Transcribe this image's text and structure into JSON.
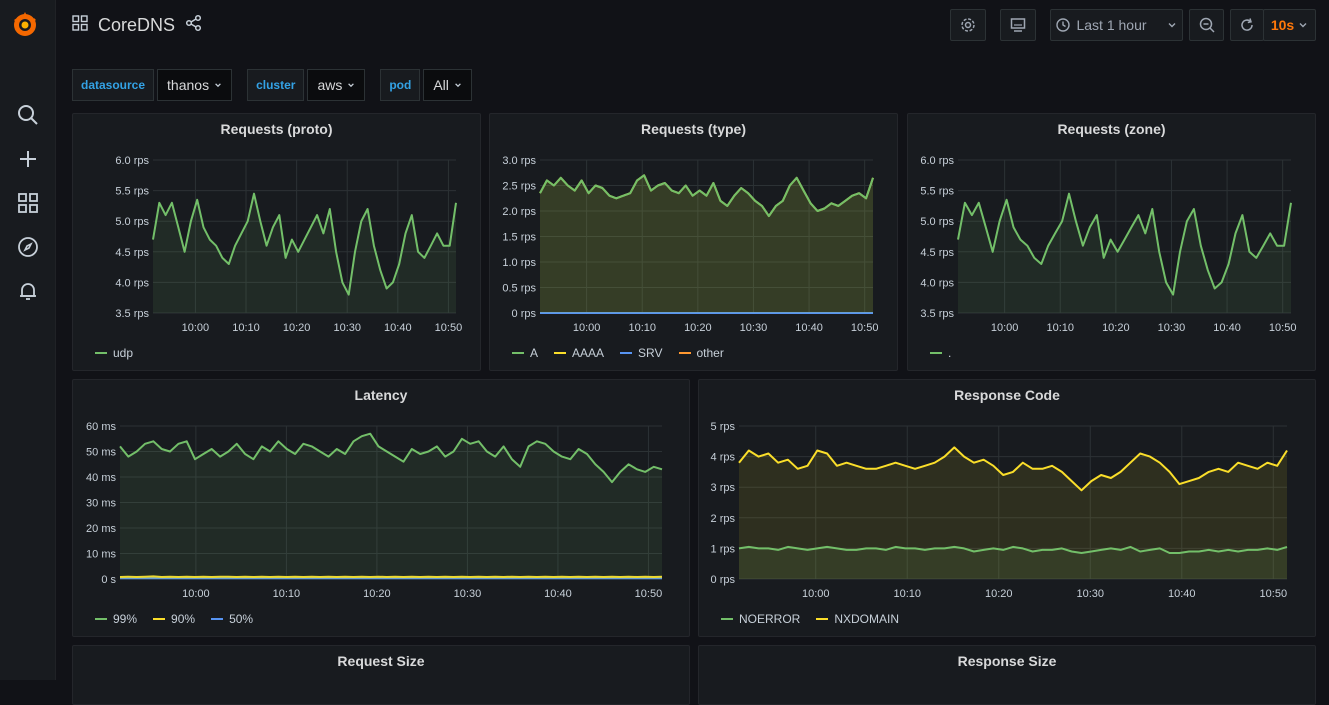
{
  "app": {
    "title": "CoreDNS"
  },
  "toolbar": {
    "time_range": "Last 1 hour",
    "refresh_interval": "10s"
  },
  "variables": [
    {
      "label": "datasource",
      "value": "thanos"
    },
    {
      "label": "cluster",
      "value": "aws"
    },
    {
      "label": "pod",
      "value": "All"
    }
  ],
  "sidebar": {
    "items": [
      "search-icon",
      "plus-icon",
      "dashboards-icon",
      "explore-icon",
      "alerting-icon"
    ]
  },
  "colors": {
    "green": "#73bf69",
    "yellow": "#fade2a",
    "blue": "#5794f2",
    "orange": "#ff9830",
    "accent": "#ff780a",
    "link": "#33a2e5"
  },
  "panels": {
    "proto": {
      "title": "Requests (proto)",
      "legend": [
        "udp"
      ]
    },
    "type": {
      "title": "Requests (type)",
      "legend": [
        "A",
        "AAAA",
        "SRV",
        "other"
      ]
    },
    "zone": {
      "title": "Requests (zone)",
      "legend": [
        "."
      ]
    },
    "latency": {
      "title": "Latency",
      "legend": [
        "99%",
        "90%",
        "50%"
      ]
    },
    "rcode": {
      "title": "Response Code",
      "legend": [
        "NOERROR",
        "NXDOMAIN"
      ]
    },
    "reqsize": {
      "title": "Request Size"
    },
    "respsize": {
      "title": "Response Size"
    }
  },
  "chart_data": [
    {
      "id": "proto",
      "type": "line",
      "x_ticks": [
        "10:00",
        "10:10",
        "10:20",
        "10:30",
        "10:40",
        "10:50"
      ],
      "y_ticks": [
        "3.5 rps",
        "4.0 rps",
        "4.5 rps",
        "5.0 rps",
        "5.5 rps",
        "6.0 rps"
      ],
      "ylim": [
        3.5,
        6.0
      ],
      "series": [
        {
          "name": "udp",
          "color": "#73bf69",
          "values": [
            4.7,
            5.3,
            5.1,
            5.3,
            4.9,
            4.5,
            5.0,
            5.35,
            4.9,
            4.7,
            4.6,
            4.4,
            4.3,
            4.6,
            4.8,
            5.0,
            5.45,
            5.0,
            4.6,
            4.9,
            5.1,
            4.4,
            4.7,
            4.5,
            4.7,
            4.9,
            5.1,
            4.8,
            5.2,
            4.5,
            4.0,
            3.8,
            4.5,
            5.0,
            5.2,
            4.6,
            4.2,
            3.9,
            4.0,
            4.3,
            4.8,
            5.1,
            4.5,
            4.4,
            4.6,
            4.8,
            4.6,
            4.6,
            5.3
          ]
        }
      ],
      "grid": true,
      "legend": "bottom-left"
    },
    {
      "id": "type",
      "type": "line",
      "x_ticks": [
        "10:00",
        "10:10",
        "10:20",
        "10:30",
        "10:40",
        "10:50"
      ],
      "y_ticks": [
        "0 rps",
        "0.5 rps",
        "1.0 rps",
        "1.5 rps",
        "2.0 rps",
        "2.5 rps",
        "3.0 rps"
      ],
      "ylim": [
        0,
        3.0
      ],
      "series": [
        {
          "name": "A",
          "color": "#73bf69",
          "values": [
            2.35,
            2.6,
            2.5,
            2.65,
            2.5,
            2.4,
            2.6,
            2.35,
            2.5,
            2.45,
            2.3,
            2.25,
            2.3,
            2.35,
            2.6,
            2.7,
            2.4,
            2.5,
            2.55,
            2.4,
            2.35,
            2.5,
            2.3,
            2.4,
            2.3,
            2.55,
            2.2,
            2.1,
            2.3,
            2.45,
            2.35,
            2.2,
            2.1,
            1.9,
            2.1,
            2.2,
            2.5,
            2.65,
            2.4,
            2.15,
            2.0,
            2.05,
            2.15,
            2.1,
            2.2,
            2.3,
            2.35,
            2.25,
            2.65
          ]
        },
        {
          "name": "AAAA",
          "color": "#fade2a",
          "values": [
            2.35,
            2.6,
            2.5,
            2.65,
            2.5,
            2.4,
            2.6,
            2.35,
            2.5,
            2.45,
            2.3,
            2.25,
            2.3,
            2.35,
            2.6,
            2.7,
            2.4,
            2.5,
            2.55,
            2.4,
            2.35,
            2.5,
            2.3,
            2.4,
            2.3,
            2.55,
            2.2,
            2.1,
            2.3,
            2.45,
            2.35,
            2.2,
            2.1,
            1.9,
            2.1,
            2.2,
            2.5,
            2.65,
            2.4,
            2.15,
            2.0,
            2.05,
            2.15,
            2.1,
            2.2,
            2.3,
            2.35,
            2.25,
            2.65
          ]
        },
        {
          "name": "SRV",
          "color": "#5794f2",
          "values": [
            0,
            0,
            0,
            0,
            0,
            0,
            0,
            0,
            0,
            0,
            0,
            0,
            0,
            0,
            0,
            0,
            0,
            0,
            0,
            0,
            0,
            0,
            0,
            0,
            0,
            0,
            0,
            0,
            0,
            0,
            0,
            0,
            0,
            0,
            0,
            0,
            0,
            0,
            0,
            0,
            0,
            0,
            0,
            0,
            0,
            0,
            0,
            0,
            0
          ]
        },
        {
          "name": "other",
          "color": "#ff9830",
          "values": [
            0,
            0,
            0,
            0,
            0,
            0,
            0,
            0,
            0,
            0,
            0,
            0,
            0,
            0,
            0,
            0,
            0,
            0,
            0,
            0,
            0,
            0,
            0,
            0,
            0,
            0,
            0,
            0,
            0,
            0,
            0,
            0,
            0,
            0,
            0,
            0,
            0,
            0,
            0,
            0,
            0,
            0,
            0,
            0,
            0,
            0,
            0,
            0,
            0
          ]
        }
      ],
      "grid": true,
      "legend": "bottom-left"
    },
    {
      "id": "zone",
      "type": "line",
      "x_ticks": [
        "10:00",
        "10:10",
        "10:20",
        "10:30",
        "10:40",
        "10:50"
      ],
      "y_ticks": [
        "3.5 rps",
        "4.0 rps",
        "4.5 rps",
        "5.0 rps",
        "5.5 rps",
        "6.0 rps"
      ],
      "ylim": [
        3.5,
        6.0
      ],
      "series": [
        {
          "name": ".",
          "color": "#73bf69",
          "values": [
            4.7,
            5.3,
            5.1,
            5.3,
            4.9,
            4.5,
            5.0,
            5.35,
            4.9,
            4.7,
            4.6,
            4.4,
            4.3,
            4.6,
            4.8,
            5.0,
            5.45,
            5.0,
            4.6,
            4.9,
            5.1,
            4.4,
            4.7,
            4.5,
            4.7,
            4.9,
            5.1,
            4.8,
            5.2,
            4.5,
            4.0,
            3.8,
            4.5,
            5.0,
            5.2,
            4.6,
            4.2,
            3.9,
            4.0,
            4.3,
            4.8,
            5.1,
            4.5,
            4.4,
            4.6,
            4.8,
            4.6,
            4.6,
            5.3
          ]
        }
      ],
      "grid": true,
      "legend": "bottom-left"
    },
    {
      "id": "latency",
      "type": "line",
      "x_ticks": [
        "10:00",
        "10:10",
        "10:20",
        "10:30",
        "10:40",
        "10:50"
      ],
      "y_ticks": [
        "0 s",
        "10 ms",
        "20 ms",
        "30 ms",
        "40 ms",
        "50 ms",
        "60 ms"
      ],
      "ylim": [
        0,
        60
      ],
      "series": [
        {
          "name": "99%",
          "color": "#73bf69",
          "values": [
            52,
            48,
            50,
            53,
            54,
            51,
            50,
            53,
            54,
            47,
            49,
            51,
            48,
            50,
            53,
            49,
            47,
            52,
            50,
            54,
            51,
            49,
            53,
            52,
            50,
            48,
            51,
            49,
            54,
            56,
            57,
            52,
            50,
            48,
            46,
            51,
            49,
            50,
            52,
            48,
            50,
            55,
            53,
            54,
            50,
            48,
            52,
            47,
            44,
            52,
            54,
            53,
            50,
            48,
            47,
            51,
            49,
            45,
            42,
            38,
            42,
            45,
            43,
            42,
            44,
            43
          ]
        },
        {
          "name": "90%",
          "color": "#fade2a",
          "values": [
            0.8,
            0.9,
            0.8,
            0.9,
            1.0,
            0.8,
            0.9,
            0.8,
            0.9,
            0.8,
            0.9,
            0.8,
            0.9,
            0.9,
            0.8,
            0.9,
            0.8,
            0.9,
            0.8,
            0.9,
            0.8,
            0.9,
            0.8,
            0.9,
            0.8,
            0.9,
            0.8,
            0.9,
            0.8,
            0.9,
            0.8,
            0.9,
            0.8,
            0.9,
            0.8,
            0.9,
            0.8,
            0.9,
            0.8,
            0.9,
            0.8,
            0.9,
            0.8,
            0.9,
            0.8,
            0.9,
            0.8,
            0.9,
            0.8,
            0.9,
            0.8,
            0.9,
            0.8,
            0.9,
            0.8,
            0.9,
            0.8,
            0.9,
            0.8,
            0.9,
            0.8,
            0.9,
            0.8,
            0.9,
            0.8,
            0.9
          ]
        },
        {
          "name": "50%",
          "color": "#5794f2",
          "values": [
            0.3,
            0.3,
            0.3,
            0.3,
            0.3,
            0.3,
            0.3,
            0.3,
            0.3,
            0.3,
            0.3,
            0.3,
            0.3,
            0.3,
            0.3,
            0.3,
            0.3,
            0.3,
            0.3,
            0.3,
            0.3,
            0.3,
            0.3,
            0.3,
            0.3,
            0.3,
            0.3,
            0.3,
            0.3,
            0.3,
            0.3,
            0.3,
            0.3,
            0.3,
            0.3,
            0.3,
            0.3,
            0.3,
            0.3,
            0.3,
            0.3,
            0.3,
            0.3,
            0.3,
            0.3,
            0.3,
            0.3,
            0.3,
            0.3,
            0.3,
            0.3,
            0.3,
            0.3,
            0.3,
            0.3,
            0.3,
            0.3,
            0.3,
            0.3,
            0.3,
            0.3,
            0.3,
            0.3,
            0.3,
            0.3,
            0.3
          ]
        }
      ],
      "grid": true,
      "legend": "bottom-left"
    },
    {
      "id": "rcode",
      "type": "line",
      "x_ticks": [
        "10:00",
        "10:10",
        "10:20",
        "10:30",
        "10:40",
        "10:50"
      ],
      "y_ticks": [
        "0 rps",
        "1 rps",
        "2 rps",
        "3 rps",
        "4 rps",
        "5 rps"
      ],
      "ylim": [
        0,
        5
      ],
      "series": [
        {
          "name": "NOERROR",
          "color": "#73bf69",
          "values": [
            1.0,
            1.05,
            1.0,
            1.0,
            0.95,
            1.05,
            1.0,
            0.95,
            1.0,
            1.05,
            1.0,
            0.95,
            0.95,
            1.0,
            1.0,
            0.95,
            1.05,
            1.0,
            1.0,
            0.95,
            1.0,
            1.0,
            1.05,
            1.0,
            0.9,
            0.95,
            1.0,
            0.95,
            1.05,
            1.0,
            0.9,
            0.95,
            0.95,
            1.0,
            0.9,
            0.85,
            0.9,
            0.95,
            1.0,
            0.95,
            1.05,
            0.9,
            0.95,
            1.0,
            0.85,
            0.85,
            0.9,
            0.9,
            0.95,
            0.9,
            0.95,
            0.9,
            0.95,
            0.95,
            1.0,
            0.95,
            1.05
          ]
        },
        {
          "name": "NXDOMAIN",
          "color": "#fade2a",
          "values": [
            3.8,
            4.2,
            4.0,
            4.1,
            3.8,
            3.9,
            3.6,
            3.7,
            4.2,
            4.1,
            3.7,
            3.8,
            3.7,
            3.6,
            3.6,
            3.7,
            3.8,
            3.7,
            3.6,
            3.7,
            3.8,
            4.0,
            4.3,
            4.0,
            3.8,
            3.9,
            3.7,
            3.4,
            3.5,
            3.8,
            3.6,
            3.6,
            3.7,
            3.5,
            3.2,
            2.9,
            3.2,
            3.4,
            3.3,
            3.5,
            3.8,
            4.1,
            4.0,
            3.8,
            3.5,
            3.1,
            3.2,
            3.3,
            3.5,
            3.6,
            3.5,
            3.8,
            3.7,
            3.6,
            3.8,
            3.7,
            4.2
          ]
        }
      ],
      "grid": true,
      "legend": "bottom-left"
    }
  ]
}
